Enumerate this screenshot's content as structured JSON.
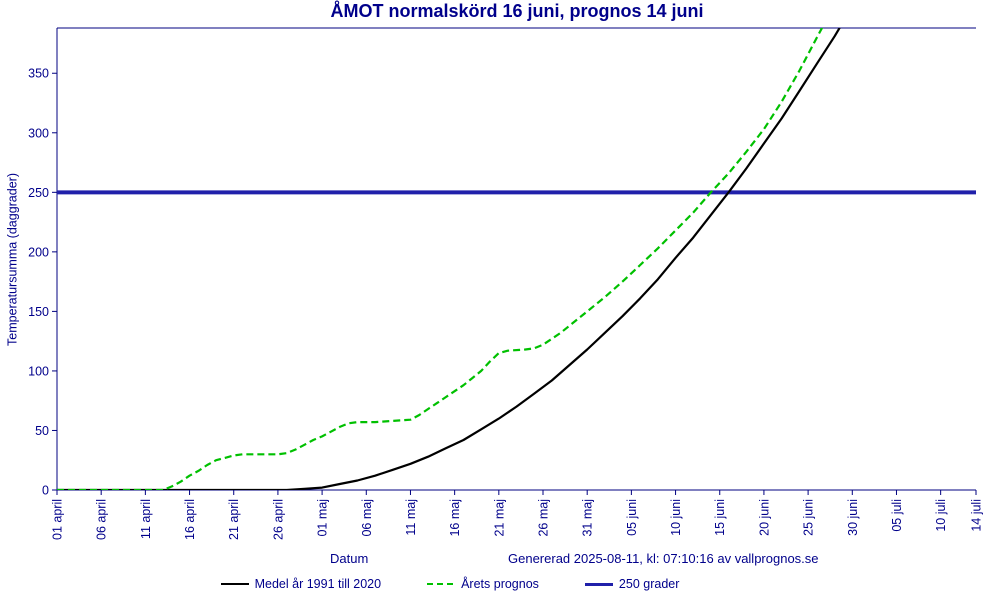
{
  "chart_data": {
    "type": "line",
    "title": "ÅMOT normalskörd 16 juni, prognos 14 juni",
    "xlabel": "Datum",
    "ylabel": "Temperatursumma (daggrader)",
    "footer": "Genererad 2025-08-11, kl: 07:10:16 av vallprognos.se",
    "text_color": "#00008B",
    "axis_color": "#000080",
    "xlim": [
      0,
      104
    ],
    "ylim": [
      0,
      388
    ],
    "yticks": [
      0,
      50,
      100,
      150,
      200,
      250,
      300,
      350
    ],
    "xticks": [
      {
        "day": 0,
        "label": "01 april"
      },
      {
        "day": 5,
        "label": "06 april"
      },
      {
        "day": 10,
        "label": "11 april"
      },
      {
        "day": 15,
        "label": "16 april"
      },
      {
        "day": 20,
        "label": "21 april"
      },
      {
        "day": 25,
        "label": "26 april"
      },
      {
        "day": 30,
        "label": "01 maj"
      },
      {
        "day": 35,
        "label": "06 maj"
      },
      {
        "day": 40,
        "label": "11 maj"
      },
      {
        "day": 45,
        "label": "16 maj"
      },
      {
        "day": 50,
        "label": "21 maj"
      },
      {
        "day": 55,
        "label": "26 maj"
      },
      {
        "day": 60,
        "label": "31 maj"
      },
      {
        "day": 65,
        "label": "05 juni"
      },
      {
        "day": 70,
        "label": "10 juni"
      },
      {
        "day": 75,
        "label": "15 juni"
      },
      {
        "day": 80,
        "label": "20 juni"
      },
      {
        "day": 85,
        "label": "25 juni"
      },
      {
        "day": 90,
        "label": "30 juni"
      },
      {
        "day": 95,
        "label": "05 juli"
      },
      {
        "day": 100,
        "label": "10 juli"
      },
      {
        "day": 104,
        "label": "14 juli"
      }
    ],
    "threshold": {
      "value": 250,
      "label": "250 grader",
      "color": "#2020AA"
    },
    "series": [
      {
        "name": "Medel år 1991 till 2020",
        "color": "#000000",
        "style": "solid",
        "points": [
          [
            0,
            0
          ],
          [
            5,
            0
          ],
          [
            10,
            0
          ],
          [
            15,
            0
          ],
          [
            20,
            0
          ],
          [
            23,
            0
          ],
          [
            26,
            0
          ],
          [
            28,
            1
          ],
          [
            30,
            2
          ],
          [
            32,
            5
          ],
          [
            34,
            8
          ],
          [
            36,
            12
          ],
          [
            38,
            17
          ],
          [
            40,
            22
          ],
          [
            42,
            28
          ],
          [
            44,
            35
          ],
          [
            46,
            42
          ],
          [
            48,
            51
          ],
          [
            50,
            60
          ],
          [
            52,
            70
          ],
          [
            54,
            81
          ],
          [
            56,
            92
          ],
          [
            58,
            105
          ],
          [
            60,
            118
          ],
          [
            62,
            132
          ],
          [
            64,
            146
          ],
          [
            66,
            161
          ],
          [
            68,
            177
          ],
          [
            70,
            195
          ],
          [
            72,
            212
          ],
          [
            74,
            231
          ],
          [
            76,
            250
          ],
          [
            78,
            270
          ],
          [
            80,
            291
          ],
          [
            82,
            312
          ],
          [
            84,
            335
          ],
          [
            86,
            358
          ],
          [
            88,
            381
          ],
          [
            90,
            406
          ]
        ]
      },
      {
        "name": "Årets prognos",
        "color": "#00C000",
        "style": "dashed",
        "points": [
          [
            0,
            0
          ],
          [
            4,
            0
          ],
          [
            8,
            0
          ],
          [
            12,
            0
          ],
          [
            13,
            3
          ],
          [
            14,
            7
          ],
          [
            15,
            12
          ],
          [
            16,
            16
          ],
          [
            17,
            21
          ],
          [
            18,
            25
          ],
          [
            19,
            27
          ],
          [
            20,
            29
          ],
          [
            21,
            30
          ],
          [
            23,
            30
          ],
          [
            25,
            30
          ],
          [
            26,
            31
          ],
          [
            27,
            34
          ],
          [
            28,
            38
          ],
          [
            29,
            42
          ],
          [
            30,
            45
          ],
          [
            31,
            49
          ],
          [
            32,
            53
          ],
          [
            33,
            56
          ],
          [
            34,
            57
          ],
          [
            36,
            57
          ],
          [
            38,
            58
          ],
          [
            40,
            59
          ],
          [
            41,
            63
          ],
          [
            42,
            68
          ],
          [
            43,
            73
          ],
          [
            44,
            78
          ],
          [
            45,
            83
          ],
          [
            46,
            88
          ],
          [
            47,
            94
          ],
          [
            48,
            100
          ],
          [
            49,
            108
          ],
          [
            50,
            115
          ],
          [
            51,
            117
          ],
          [
            53,
            118
          ],
          [
            54,
            119
          ],
          [
            55,
            122
          ],
          [
            56,
            127
          ],
          [
            57,
            132
          ],
          [
            58,
            138
          ],
          [
            59,
            144
          ],
          [
            60,
            150
          ],
          [
            62,
            162
          ],
          [
            64,
            175
          ],
          [
            66,
            189
          ],
          [
            68,
            203
          ],
          [
            70,
            218
          ],
          [
            72,
            233
          ],
          [
            74,
            250
          ],
          [
            76,
            266
          ],
          [
            78,
            284
          ],
          [
            80,
            303
          ],
          [
            82,
            326
          ],
          [
            84,
            352
          ],
          [
            86,
            380
          ],
          [
            87,
            394
          ],
          [
            88,
            408
          ]
        ]
      }
    ]
  }
}
